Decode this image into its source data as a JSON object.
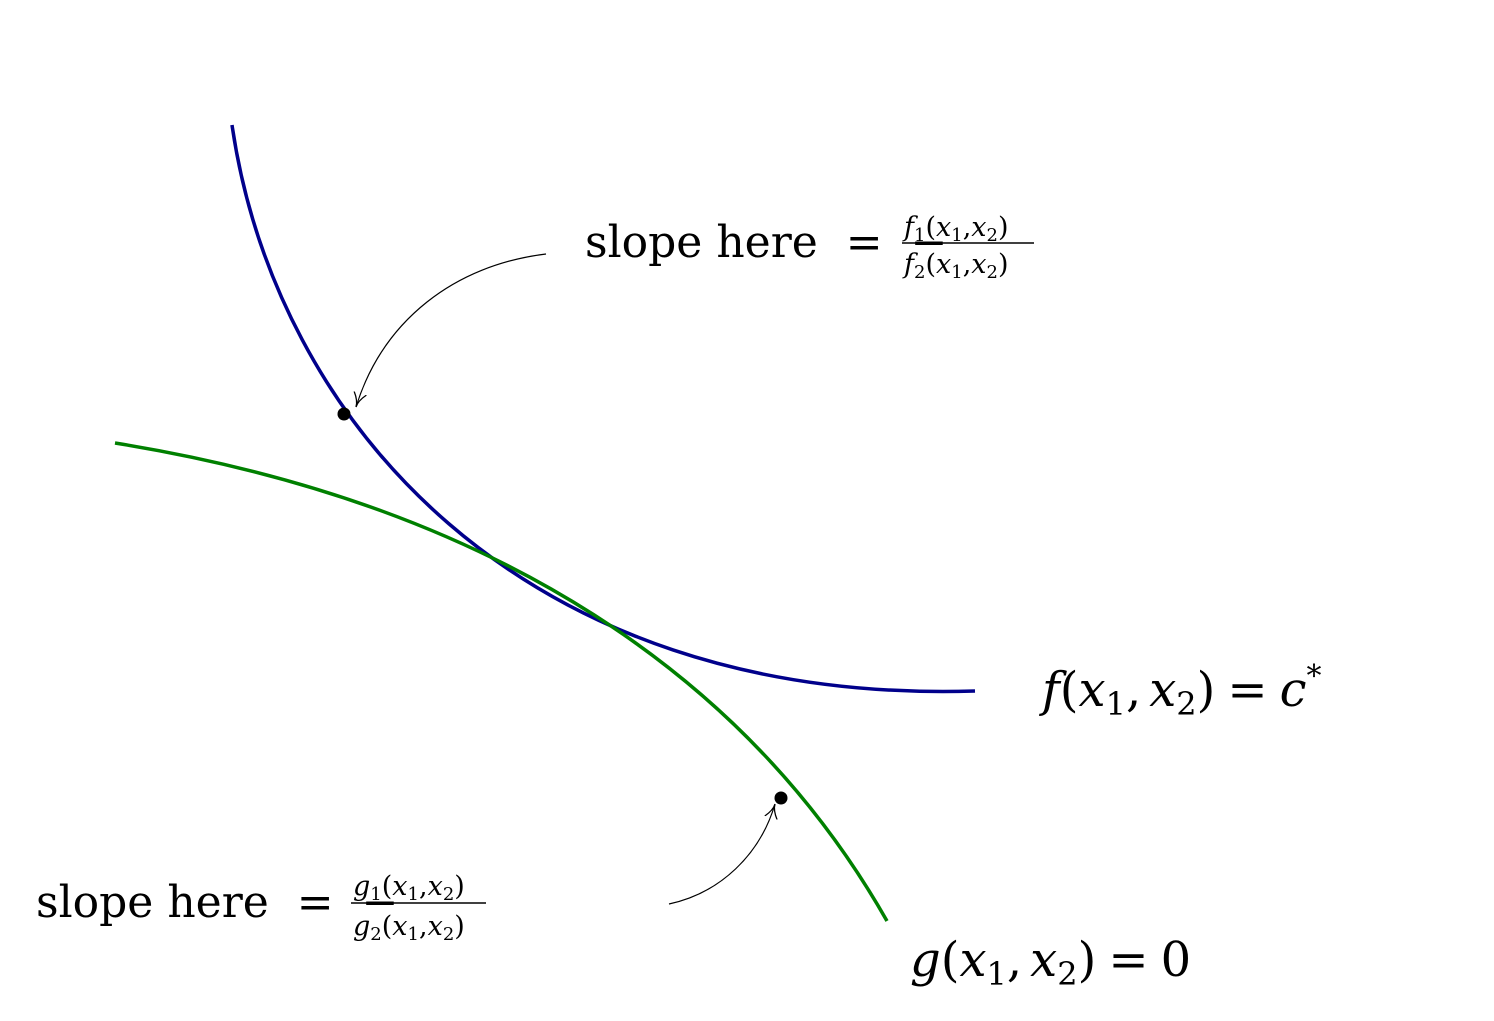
{
  "curves": {
    "level_set": {
      "f": "f",
      "lparen": "(",
      "x": "x",
      "sub1": "1",
      "comma": ",",
      "x_b": "x",
      "sub2": "2",
      "rparen": ")",
      "eq": "=",
      "c": "c",
      "star": "*",
      "color": "#00008B"
    },
    "constraint": {
      "g": "g",
      "lparen": "(",
      "x": "x",
      "sub1": "1",
      "comma": ",",
      "x_b": "x",
      "sub2": "2",
      "rparen": ")",
      "eq": "=",
      "zero": "0",
      "color": "#008000"
    }
  },
  "annotations": {
    "upper": {
      "text": "slope here",
      "eq": "=",
      "minus": "−",
      "num": {
        "fn": "f",
        "sub": "1",
        "args_open": "(",
        "x1": "x",
        "x1_sub": "1",
        "comma": ",",
        "x2": "x",
        "x2_sub": "2",
        "args_close": ")"
      },
      "den": {
        "fn": "f",
        "sub": "2",
        "args_open": "(",
        "x1": "x",
        "x1_sub": "1",
        "comma": ",",
        "x2": "x",
        "x2_sub": "2",
        "args_close": ")"
      }
    },
    "lower": {
      "text": "slope here",
      "eq": "=",
      "minus": "−",
      "num": {
        "fn": "g",
        "sub": "1",
        "args_open": "(",
        "x1": "x",
        "x1_sub": "1",
        "comma": ",",
        "x2": "x",
        "x2_sub": "2",
        "args_close": ")"
      },
      "den": {
        "fn": "g",
        "sub": "2",
        "args_open": "(",
        "x1": "x",
        "x1_sub": "1",
        "comma": ",",
        "x2": "x",
        "x2_sub": "2",
        "args_close": ")"
      }
    }
  }
}
